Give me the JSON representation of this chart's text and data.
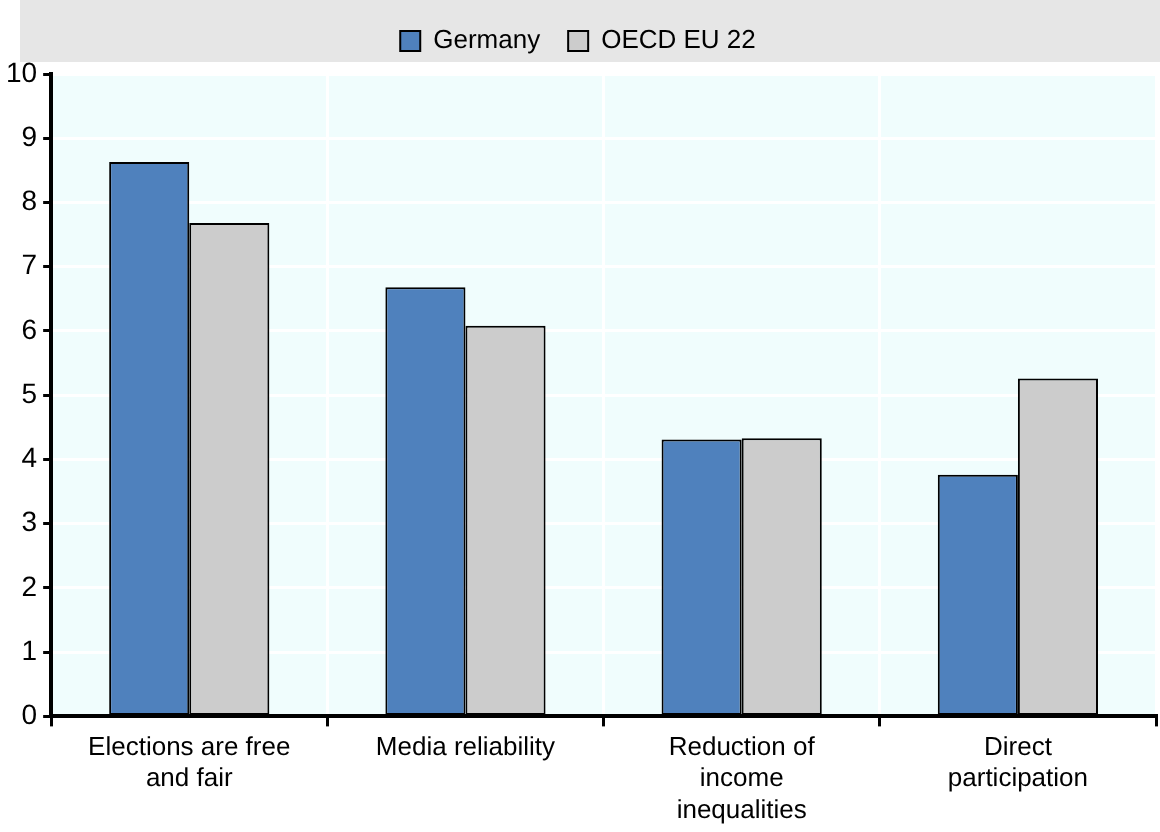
{
  "chart_data": {
    "type": "bar",
    "categories": [
      "Elections are free and fair",
      "Media reliability",
      "Reduction of income inequalities",
      "Direct participation"
    ],
    "series": [
      {
        "name": "Germany",
        "color": "#4f81bd",
        "values": [
          8.63,
          6.68,
          4.31,
          3.76
        ]
      },
      {
        "name": "OECD EU 22",
        "color": "#cccccc",
        "values": [
          7.68,
          6.08,
          4.33,
          5.26
        ]
      }
    ],
    "ylim": [
      0,
      10
    ],
    "yticks": [
      0,
      1,
      2,
      3,
      4,
      5,
      6,
      7,
      8,
      9,
      10
    ],
    "grid": true,
    "legend": "top"
  }
}
